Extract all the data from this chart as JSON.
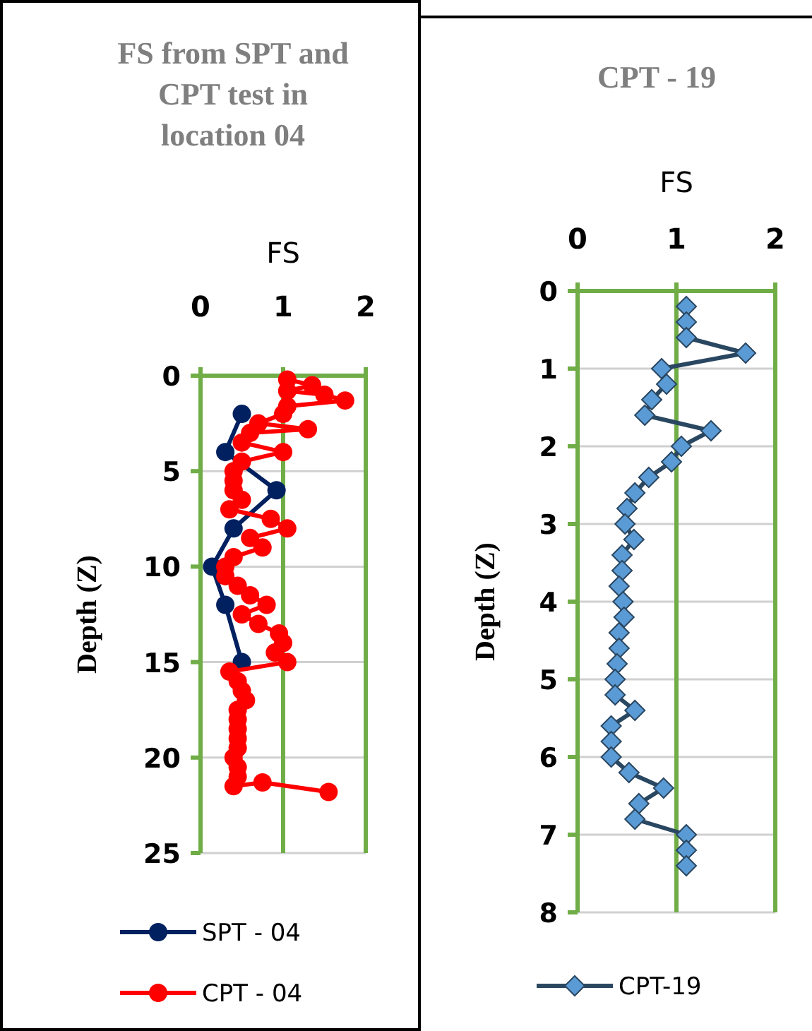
{
  "chart_data": [
    {
      "type": "line",
      "title": "FS from SPT and CPT test in location 04",
      "xlabel": "FS",
      "ylabel": "Depth (Z)",
      "xlim": [
        0,
        2
      ],
      "xticks": [
        0,
        1,
        2
      ],
      "ylim": [
        25,
        0
      ],
      "yticks": [
        0,
        5,
        10,
        15,
        20,
        25
      ],
      "grid": true,
      "ref_lines": [
        {
          "axis": "x",
          "value": 1,
          "color": "#70ad47"
        }
      ],
      "legend": "bottom",
      "series": [
        {
          "name": "SPT - 04",
          "color": "#002060",
          "marker": "circle",
          "x": [
            0.5,
            0.3,
            0.92,
            0.4,
            0.14,
            0.3,
            0.5
          ],
          "values": [
            2,
            4,
            6,
            8,
            10,
            12,
            15
          ]
        },
        {
          "name": "CPT - 04",
          "color": "#ff0000",
          "marker": "circle",
          "x": [
            1.05,
            1.35,
            1.05,
            1.5,
            1.75,
            1.05,
            1.0,
            0.7,
            1.3,
            0.6,
            0.5,
            1.0,
            0.5,
            0.4,
            0.4,
            0.4,
            0.5,
            0.35,
            0.85,
            1.05,
            0.6,
            0.75,
            0.4,
            0.3,
            0.3,
            0.45,
            0.6,
            0.8,
            0.5,
            0.7,
            0.95,
            1.0,
            0.9,
            1.05,
            0.35,
            0.45,
            0.5,
            0.55,
            0.45,
            0.45,
            0.45,
            0.45,
            0.45,
            0.4,
            0.45,
            0.45,
            0.4,
            0.75,
            1.55
          ],
          "values": [
            0.2,
            0.5,
            0.8,
            1.0,
            1.3,
            1.6,
            2.0,
            2.5,
            2.8,
            3.0,
            3.5,
            4.0,
            4.5,
            5.0,
            5.5,
            6.0,
            6.5,
            7.0,
            7.5,
            8.0,
            8.5,
            9.0,
            9.5,
            10.0,
            10.5,
            11.0,
            11.5,
            12.0,
            12.5,
            13.0,
            13.5,
            14.0,
            14.5,
            15.0,
            15.5,
            16.0,
            16.5,
            17.0,
            17.5,
            18.0,
            18.5,
            19.0,
            19.5,
            20.0,
            20.5,
            21.0,
            21.5,
            21.3,
            21.8
          ]
        }
      ]
    },
    {
      "type": "line",
      "title": "CPT - 19",
      "xlabel": "FS",
      "ylabel": "Depth (Z)",
      "xlim": [
        0,
        2
      ],
      "xticks": [
        0,
        1,
        2
      ],
      "ylim": [
        8,
        0
      ],
      "yticks": [
        0,
        1,
        2,
        3,
        4,
        5,
        6,
        7,
        8
      ],
      "grid": true,
      "ref_lines": [
        {
          "axis": "x",
          "value": 1,
          "color": "#70ad47"
        }
      ],
      "legend": "bottom",
      "series": [
        {
          "name": "CPT-19",
          "color": "#5b9bd5",
          "marker": "diamond",
          "x": [
            1.1,
            1.1,
            1.1,
            1.7,
            0.85,
            0.9,
            0.75,
            0.68,
            1.35,
            1.05,
            0.95,
            0.72,
            0.58,
            0.5,
            0.48,
            0.57,
            0.45,
            0.45,
            0.42,
            0.46,
            0.47,
            0.42,
            0.42,
            0.4,
            0.38,
            0.38,
            0.58,
            0.34,
            0.34,
            0.34,
            0.52,
            0.87,
            0.62,
            0.58,
            1.1,
            1.1,
            1.1
          ],
          "values": [
            0.2,
            0.4,
            0.6,
            0.8,
            1.0,
            1.2,
            1.4,
            1.6,
            1.8,
            2.0,
            2.2,
            2.4,
            2.6,
            2.8,
            3.0,
            3.2,
            3.4,
            3.6,
            3.8,
            4.0,
            4.2,
            4.4,
            4.6,
            4.8,
            5.0,
            5.2,
            5.4,
            5.6,
            5.8,
            6.0,
            6.2,
            6.4,
            6.6,
            6.8,
            7.0,
            7.2,
            7.4
          ]
        }
      ]
    }
  ]
}
